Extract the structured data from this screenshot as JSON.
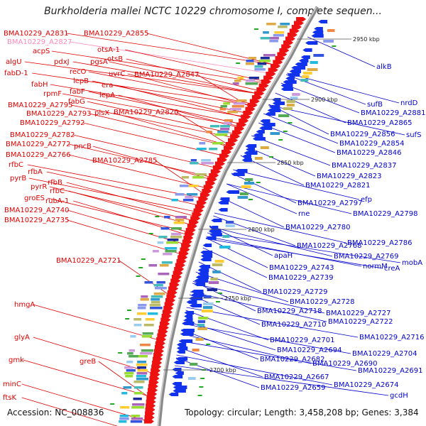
{
  "title": "Burkholderia mallei NCTC 10229 chromosome I, complete sequen...",
  "footer": {
    "accession": "Accession: NC_008836",
    "stats": "Topology: circular; Length: 3,458,208 bp; Genes: 3,384"
  },
  "colors": {
    "forward_label": "#e00000",
    "reverse_label": "#0000cc",
    "highlight_label": "#ff88bb",
    "forward_arrow": "#ee1111",
    "reverse_arrow": "#1133ee",
    "backbone": "#8a8a8a"
  },
  "scale_ticks": [
    "2950 kbp",
    "2900 kbp",
    "2850 kbp",
    "2800 kbp",
    "2750 kbp",
    "2700 kbp"
  ],
  "left_labels": [
    "BMA10229_A2831",
    "BMA10229_A2855",
    "BMA10229_A2827",
    "otsA-1",
    "acpS",
    "otsB",
    "algU",
    "pdxJ",
    "pgsA",
    "fabD-1",
    "recO",
    "uvrC",
    "BMA10229_A2847",
    "lepB",
    "era",
    "fabH",
    "fabF",
    "lepA",
    "rpmF",
    "fabG",
    "BMA10229_A2795",
    "plsX",
    "BMA10229_A2820",
    "BMA10229_A2793",
    "BMA10229_A2792",
    "BMA10229_A2782",
    "pncB",
    "BMA10229_A2772",
    "BMA10229_A2785",
    "BMA10229_A2766",
    "rfbC",
    "rfbA",
    "pyrB",
    "rfbB",
    "pyrR",
    "rfbC",
    "groES",
    "rubA-1",
    "BMA10229_A2740",
    "BMA10229_A2735",
    "BMA10229_A2721",
    "hmgA",
    "glyA",
    "gmk",
    "greB",
    "minC",
    "ftsK"
  ],
  "right_labels": [
    "alkB",
    "nrdD",
    "sufB",
    "BMA10229_A2881",
    "BMA10229_A2865",
    "sufS",
    "BMA10229_A2856",
    "BMA10229_A2854",
    "BMA10229_A2846",
    "BMA10229_A2837",
    "BMA10229_A2823",
    "BMA10229_A2821",
    "efp",
    "BMA10229_A2797",
    "BMA10229_A2798",
    "rne",
    "BMA10229_A2780",
    "BMA10229_A2786",
    "BMA10229_A2768",
    "BMA10229_A2769",
    "mobA",
    "apaH",
    "normM",
    "creA",
    "BMA10229_A2743",
    "BMA10229_A2739",
    "BMA10229_A2729",
    "BMA10229_A2728",
    "BMA10229_A2718",
    "BMA10229_A2727",
    "BMA10229_A2710",
    "BMA10229_A2722",
    "BMA10229_A2716",
    "BMA10229_A2701",
    "BMA10229_A2694",
    "BMA10229_A2704",
    "BMA10229_A2682",
    "BMA10229_A2690",
    "BMA10229_A2691",
    "BMA10229_A2667",
    "BMA10229_A2674",
    "BMA10229_A2659",
    "gcdH"
  ]
}
